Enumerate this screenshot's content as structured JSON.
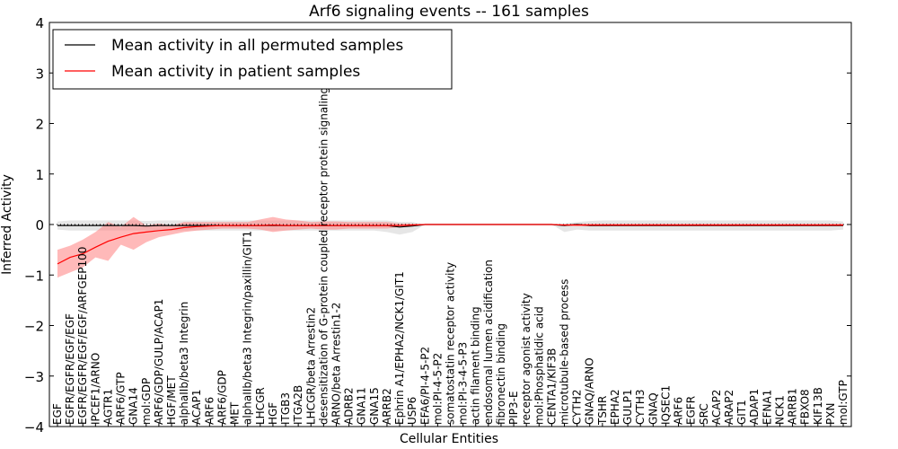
{
  "chart_data": {
    "type": "line",
    "title": "Arf6 signaling events -- 161 samples",
    "xlabel": "Cellular Entities",
    "ylabel": "Inferred Activity",
    "ylim": [
      -4,
      4
    ],
    "yticks": [
      -4,
      -3,
      -2,
      -1,
      0,
      1,
      2,
      3,
      4
    ],
    "grid": false,
    "legend_position": "top-left",
    "colors": {
      "permuted": "#000000",
      "patient": "#ff0000",
      "permuted_band": "#c8c8c8",
      "patient_band": "#ff8080"
    },
    "categories": [
      "EGF",
      "EGFR/EGFR/EGF/EGF",
      "EGFR/EGFR/EGF/EGF/ARFGEP100",
      "IPCEF1/ARNO",
      "AGTR1",
      "ARF6/GTP",
      "GNA14",
      "mol:GDP",
      "ARF6/GDP/GULP/ACAP1",
      "HGF/MET",
      "alphaIIb/beta3 Integrin",
      "ACAP1",
      "ARF6",
      "ARF6/GDP",
      "MET",
      "alphaIIb/beta3 Integrin/paxillin/GIT1",
      "LHCGR",
      "HGF",
      "ITGB3",
      "ITGA2B",
      "LHCGR/beta Arrestin2",
      "desensitization of G-protein coupled receptor protein signaling pathway",
      "ARNO/beta Arrestin1-2",
      "ADRB2",
      "GNA11",
      "GNA15",
      "ARRB2",
      "Ephrin A1/EPHA2/NCK1/GIT1",
      "USP6",
      "EFA6/PI-4-5-P2",
      "mol:PI-4-5-P2",
      "somatostatin receptor activity",
      "mol:PI-3-4-5-P3",
      "actin filament binding",
      "endosomal lumen acidification",
      "fibronectin binding",
      "PIP3-E",
      "receptor agonist activity",
      "mol:Phosphatidic acid",
      "CENTA1/KIF3B",
      "microtubule-based process",
      "CYTH2",
      "GNAQ/ARNO",
      "TSHR",
      "EPHA2",
      "GULP1",
      "CYTH3",
      "GNAQ",
      "IQSEC1",
      "ARF6",
      "EGFR",
      "SRC",
      "ACAP2",
      "ARAP2",
      "GIT1",
      "ADAP1",
      "EFNA1",
      "NCK1",
      "ARRB1",
      "FBXO8",
      "KIF13B",
      "PXN",
      "mol:GTP"
    ],
    "series": [
      {
        "name": "Mean activity in all permuted samples",
        "values": [
          -0.02,
          -0.02,
          -0.02,
          -0.02,
          -0.02,
          -0.02,
          -0.02,
          -0.03,
          -0.02,
          -0.02,
          -0.02,
          -0.02,
          -0.02,
          -0.02,
          -0.02,
          -0.02,
          -0.02,
          -0.02,
          -0.02,
          -0.02,
          -0.02,
          -0.02,
          -0.02,
          -0.02,
          -0.02,
          -0.02,
          -0.02,
          -0.05,
          -0.03,
          0,
          0,
          0,
          0,
          0,
          0,
          0,
          0,
          0,
          0,
          0,
          -0.02,
          0,
          -0.02,
          -0.02,
          -0.02,
          -0.02,
          -0.02,
          -0.02,
          -0.02,
          -0.02,
          -0.02,
          -0.02,
          -0.02,
          -0.02,
          -0.02,
          -0.02,
          -0.02,
          -0.02,
          -0.02,
          -0.02,
          -0.02,
          -0.02,
          -0.02
        ],
        "lower": [
          -0.1,
          -0.12,
          -0.12,
          -0.12,
          -0.12,
          -0.12,
          -0.12,
          -0.12,
          -0.12,
          -0.12,
          -0.12,
          -0.12,
          -0.12,
          -0.12,
          -0.12,
          -0.12,
          -0.12,
          -0.12,
          -0.12,
          -0.12,
          -0.12,
          -0.12,
          -0.12,
          -0.12,
          -0.12,
          -0.12,
          -0.15,
          -0.2,
          -0.15,
          0,
          0,
          0,
          0,
          0,
          0,
          0,
          0,
          0,
          0,
          0,
          -0.15,
          -0.1,
          -0.12,
          -0.12,
          -0.12,
          -0.12,
          -0.12,
          -0.12,
          -0.12,
          -0.12,
          -0.12,
          -0.12,
          -0.12,
          -0.12,
          -0.12,
          -0.12,
          -0.12,
          -0.12,
          -0.12,
          -0.12,
          -0.12,
          -0.12,
          -0.1
        ],
        "upper": [
          0.06,
          0.08,
          0.08,
          0.08,
          0.08,
          0.08,
          0.08,
          0.07,
          0.08,
          0.08,
          0.08,
          0.08,
          0.08,
          0.08,
          0.08,
          0.08,
          0.08,
          0.08,
          0.08,
          0.08,
          0.08,
          0.08,
          0.08,
          0.08,
          0.08,
          0.08,
          0.08,
          0.05,
          0.05,
          0,
          0,
          0,
          0,
          0,
          0,
          0,
          0,
          0,
          0,
          0,
          0.02,
          0.05,
          0.07,
          0.08,
          0.08,
          0.08,
          0.08,
          0.08,
          0.08,
          0.08,
          0.08,
          0.08,
          0.08,
          0.08,
          0.08,
          0.08,
          0.08,
          0.08,
          0.08,
          0.08,
          0.08,
          0.08,
          0.06
        ]
      },
      {
        "name": "Mean activity in patient samples",
        "values": [
          -0.78,
          -0.65,
          -0.58,
          -0.45,
          -0.33,
          -0.25,
          -0.18,
          -0.15,
          -0.12,
          -0.1,
          -0.06,
          -0.04,
          -0.03,
          -0.02,
          -0.02,
          -0.02,
          -0.02,
          -0.01,
          -0.02,
          -0.02,
          -0.02,
          -0.02,
          -0.02,
          -0.02,
          -0.02,
          -0.02,
          -0.02,
          -0.02,
          -0.01,
          0,
          0,
          0,
          0,
          0,
          0,
          0,
          0,
          0,
          0,
          0,
          -0.01,
          -0.01,
          -0.01,
          -0.01,
          -0.01,
          -0.01,
          -0.01,
          -0.01,
          -0.01,
          -0.01,
          -0.01,
          -0.01,
          -0.01,
          -0.01,
          -0.01,
          -0.01,
          -0.01,
          -0.01,
          -0.01,
          -0.01,
          -0.01,
          -0.01,
          -0.01
        ],
        "lower": [
          -1.05,
          -0.95,
          -0.85,
          -0.65,
          -0.72,
          -0.4,
          -0.5,
          -0.35,
          -0.25,
          -0.2,
          -0.15,
          -0.12,
          -0.1,
          -0.08,
          -0.08,
          -0.08,
          -0.1,
          -0.15,
          -0.12,
          -0.1,
          -0.08,
          -0.1,
          -0.1,
          -0.08,
          -0.08,
          -0.08,
          -0.08,
          -0.05,
          -0.03,
          0,
          0,
          0,
          0,
          0,
          0,
          0,
          0,
          0,
          0,
          0,
          -0.02,
          -0.03,
          -0.03,
          -0.03,
          -0.03,
          -0.03,
          -0.03,
          -0.03,
          -0.03,
          -0.03,
          -0.03,
          -0.03,
          -0.03,
          -0.03,
          -0.03,
          -0.03,
          -0.03,
          -0.03,
          -0.03,
          -0.03,
          -0.03,
          -0.03,
          -0.03
        ],
        "upper": [
          -0.5,
          -0.42,
          -0.3,
          -0.15,
          0.05,
          -0.05,
          0.15,
          -0.02,
          0.02,
          -0.02,
          0.05,
          0.05,
          0.05,
          0.05,
          0.05,
          0.05,
          0.1,
          0.15,
          0.1,
          0.08,
          0.05,
          0.06,
          0.06,
          0.05,
          0.05,
          0.05,
          0.05,
          0.02,
          0.02,
          0,
          0,
          0,
          0,
          0,
          0,
          0,
          0,
          0,
          0,
          0,
          0.01,
          0.02,
          0.02,
          0.02,
          0.02,
          0.02,
          0.02,
          0.02,
          0.02,
          0.02,
          0.02,
          0.02,
          0.02,
          0.02,
          0.02,
          0.02,
          0.02,
          0.02,
          0.02,
          0.02,
          0.02,
          0.02,
          0.02
        ]
      }
    ]
  }
}
